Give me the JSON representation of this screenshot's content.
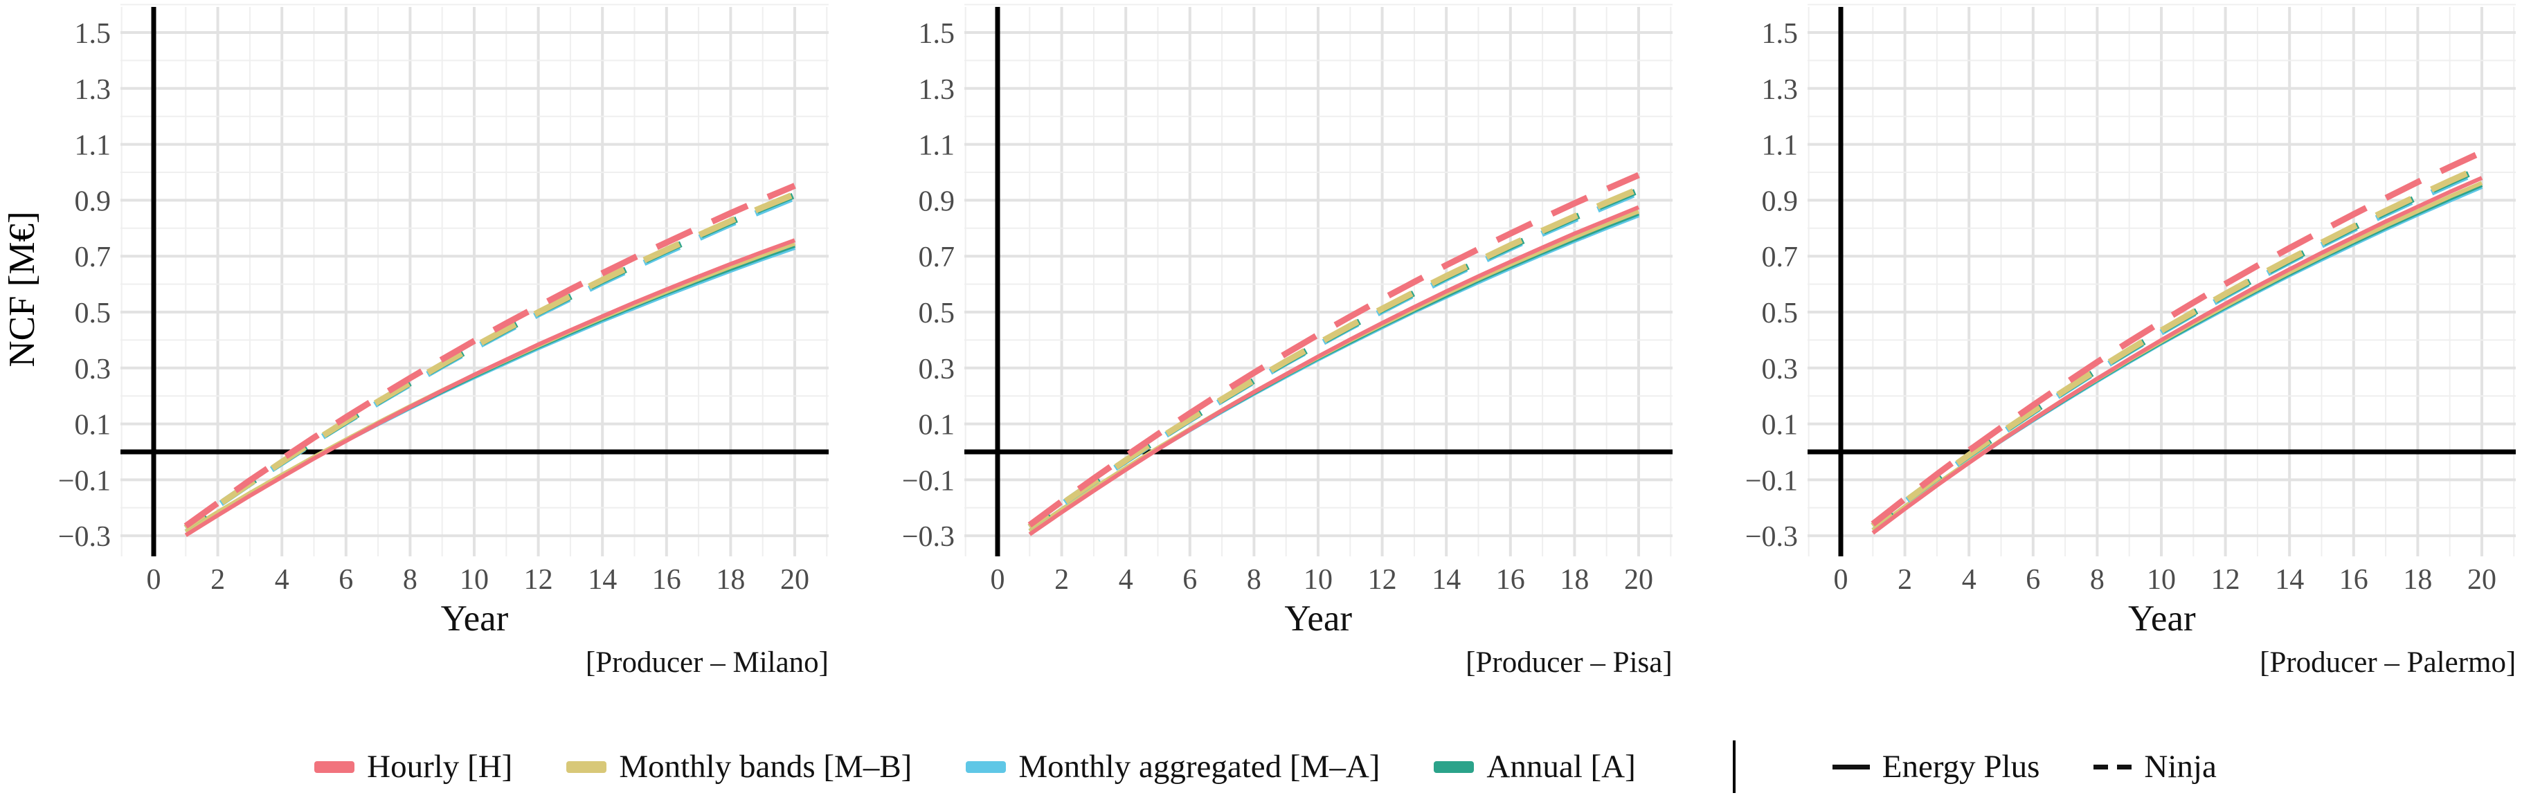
{
  "figure": {
    "ylabel": "NCF [M€]"
  },
  "styles": {
    "accent_red": "#F1737D",
    "accent_yellow": "#D8C878",
    "accent_blue": "#5FC7E6",
    "accent_teal": "#2BA38A",
    "axis_color": "#000000",
    "grid_major": "#e2e2e2",
    "grid_minor": "#efefef",
    "tick_color": "#4c4c4c"
  },
  "legend": {
    "models": [
      {
        "label": "Hourly [H]",
        "color": "#F1737D"
      },
      {
        "label": "Monthly bands [M–B]",
        "color": "#D8C878"
      },
      {
        "label": "Monthly aggregated [M–A]",
        "color": "#5FC7E6"
      },
      {
        "label": "Annual [A]",
        "color": "#2BA38A"
      }
    ],
    "sources": [
      {
        "label": "Energy Plus",
        "style": "solid"
      },
      {
        "label": "Ninja",
        "style": "dashed"
      }
    ]
  },
  "chart_data": [
    {
      "type": "line",
      "caption": "[Producer – Milano]",
      "xlabel": "Year",
      "ylabel": "NCF [M€]",
      "xlim": [
        -1,
        21
      ],
      "ylim": [
        -0.37,
        1.55
      ],
      "grid": true,
      "x": [
        1,
        2,
        3,
        4,
        5,
        6,
        7,
        8,
        9,
        10,
        11,
        12,
        13,
        14,
        15,
        16,
        17,
        18,
        19,
        20
      ],
      "x_ticks": [
        0,
        2,
        4,
        6,
        8,
        10,
        12,
        14,
        16,
        18,
        20
      ],
      "y_ticks": [
        {
          "v": 1.5,
          "label": "1.5"
        },
        {
          "v": 1.3,
          "label": "1.3"
        },
        {
          "v": 1.1,
          "label": "1.1"
        },
        {
          "v": 0.9,
          "label": "0.9"
        },
        {
          "v": 0.7,
          "label": "0.7"
        },
        {
          "v": 0.5,
          "label": "0.5"
        },
        {
          "v": 0.3,
          "label": "0.3"
        },
        {
          "v": 0.1,
          "label": "0.1"
        },
        {
          "v": -0.1,
          "label": "−0.1"
        },
        {
          "v": -0.3,
          "label": "−0.3"
        }
      ],
      "series": [
        {
          "model": "Monthly aggregated [M–A]",
          "source": "Energy Plus",
          "color": "#5FC7E6",
          "dashed": false,
          "values": [
            -0.285,
            -0.216,
            -0.149,
            -0.085,
            -0.022,
            0.04,
            0.099,
            0.157,
            0.213,
            0.267,
            0.319,
            0.371,
            0.42,
            0.469,
            0.515,
            0.561,
            0.605,
            0.648,
            0.69,
            0.73
          ]
        },
        {
          "model": "Annual [A]",
          "source": "Energy Plus",
          "color": "#2BA38A",
          "dashed": false,
          "values": [
            -0.285,
            -0.216,
            -0.148,
            -0.083,
            -0.02,
            0.042,
            0.102,
            0.16,
            0.216,
            0.271,
            0.324,
            0.376,
            0.426,
            0.475,
            0.522,
            0.568,
            0.612,
            0.655,
            0.697,
            0.738
          ]
        },
        {
          "model": "Monthly bands [M–B]",
          "source": "Energy Plus",
          "color": "#D8C878",
          "dashed": false,
          "values": [
            -0.285,
            -0.215,
            -0.147,
            -0.082,
            -0.018,
            0.044,
            0.105,
            0.163,
            0.22,
            0.275,
            0.328,
            0.38,
            0.431,
            0.48,
            0.527,
            0.573,
            0.618,
            0.662,
            0.704,
            0.745
          ]
        },
        {
          "model": "Hourly [H]",
          "source": "Energy Plus",
          "color": "#F1737D",
          "dashed": false,
          "values": [
            -0.298,
            -0.227,
            -0.157,
            -0.09,
            -0.024,
            0.039,
            0.101,
            0.161,
            0.219,
            0.276,
            0.33,
            0.384,
            0.435,
            0.485,
            0.534,
            0.581,
            0.627,
            0.672,
            0.715,
            0.757
          ]
        },
        {
          "model": "Monthly aggregated [M–A]",
          "source": "Ninja",
          "color": "#5FC7E6",
          "dashed": true,
          "values": [
            -0.272,
            -0.192,
            -0.114,
            -0.039,
            0.035,
            0.106,
            0.175,
            0.242,
            0.307,
            0.371,
            0.432,
            0.492,
            0.549,
            0.606,
            0.66,
            0.713,
            0.764,
            0.815,
            0.863,
            0.91
          ]
        },
        {
          "model": "Annual [A]",
          "source": "Ninja",
          "color": "#2BA38A",
          "dashed": true,
          "values": [
            -0.272,
            -0.191,
            -0.113,
            -0.037,
            0.037,
            0.108,
            0.178,
            0.246,
            0.311,
            0.375,
            0.437,
            0.497,
            0.555,
            0.612,
            0.666,
            0.72,
            0.771,
            0.822,
            0.871,
            0.918
          ]
        },
        {
          "model": "Monthly bands [M–B]",
          "source": "Ninja",
          "color": "#D8C878",
          "dashed": true,
          "values": [
            -0.272,
            -0.191,
            -0.113,
            -0.036,
            0.038,
            0.11,
            0.18,
            0.247,
            0.313,
            0.377,
            0.439,
            0.499,
            0.558,
            0.615,
            0.67,
            0.723,
            0.775,
            0.826,
            0.875,
            0.922
          ]
        },
        {
          "model": "Hourly [H]",
          "source": "Ninja",
          "color": "#F1737D",
          "dashed": true,
          "values": [
            -0.265,
            -0.183,
            -0.102,
            -0.025,
            0.051,
            0.124,
            0.195,
            0.264,
            0.331,
            0.397,
            0.46,
            0.521,
            0.581,
            0.639,
            0.695,
            0.749,
            0.802,
            0.854,
            0.904,
            0.952
          ]
        }
      ]
    },
    {
      "type": "line",
      "caption": "[Producer – Pisa]",
      "xlabel": "Year",
      "ylabel": "NCF [M€]",
      "xlim": [
        -1,
        21
      ],
      "ylim": [
        -0.37,
        1.55
      ],
      "grid": true,
      "x": [
        1,
        2,
        3,
        4,
        5,
        6,
        7,
        8,
        9,
        10,
        11,
        12,
        13,
        14,
        15,
        16,
        17,
        18,
        19,
        20
      ],
      "x_ticks": [
        0,
        2,
        4,
        6,
        8,
        10,
        12,
        14,
        16,
        18,
        20
      ],
      "y_ticks": [
        {
          "v": 1.5,
          "label": "1.5"
        },
        {
          "v": 1.3,
          "label": "1.3"
        },
        {
          "v": 1.1,
          "label": "1.1"
        },
        {
          "v": 0.9,
          "label": "0.9"
        },
        {
          "v": 0.7,
          "label": "0.7"
        },
        {
          "v": 0.5,
          "label": "0.5"
        },
        {
          "v": 0.3,
          "label": "0.3"
        },
        {
          "v": 0.1,
          "label": "0.1"
        },
        {
          "v": -0.1,
          "label": "−0.1"
        },
        {
          "v": -0.3,
          "label": "−0.3"
        }
      ],
      "series": [
        {
          "model": "Monthly aggregated [M–A]",
          "source": "Energy Plus",
          "color": "#5FC7E6",
          "dashed": false,
          "values": [
            -0.283,
            -0.206,
            -0.132,
            -0.06,
            0.01,
            0.078,
            0.144,
            0.208,
            0.27,
            0.331,
            0.389,
            0.446,
            0.502,
            0.555,
            0.607,
            0.658,
            0.707,
            0.755,
            0.801,
            0.846
          ]
        },
        {
          "model": "Annual [A]",
          "source": "Energy Plus",
          "color": "#2BA38A",
          "dashed": false,
          "values": [
            -0.283,
            -0.206,
            -0.131,
            -0.059,
            0.012,
            0.08,
            0.147,
            0.211,
            0.274,
            0.335,
            0.393,
            0.451,
            0.506,
            0.56,
            0.613,
            0.664,
            0.713,
            0.761,
            0.808,
            0.853
          ]
        },
        {
          "model": "Monthly bands [M–B]",
          "source": "Energy Plus",
          "color": "#D8C878",
          "dashed": false,
          "values": [
            -0.283,
            -0.206,
            -0.13,
            -0.057,
            0.014,
            0.082,
            0.149,
            0.214,
            0.277,
            0.338,
            0.398,
            0.455,
            0.511,
            0.566,
            0.619,
            0.67,
            0.719,
            0.768,
            0.815,
            0.86
          ]
        },
        {
          "model": "Hourly [H]",
          "source": "Energy Plus",
          "color": "#F1737D",
          "dashed": false,
          "values": [
            -0.295,
            -0.216,
            -0.139,
            -0.064,
            0.009,
            0.079,
            0.148,
            0.214,
            0.278,
            0.341,
            0.402,
            0.461,
            0.518,
            0.574,
            0.628,
            0.68,
            0.731,
            0.781,
            0.828,
            0.875
          ]
        },
        {
          "model": "Monthly aggregated [M–A]",
          "source": "Ninja",
          "color": "#5FC7E6",
          "dashed": true,
          "values": [
            -0.269,
            -0.188,
            -0.109,
            -0.033,
            0.042,
            0.114,
            0.184,
            0.252,
            0.318,
            0.382,
            0.444,
            0.504,
            0.563,
            0.62,
            0.675,
            0.729,
            0.781,
            0.831,
            0.88,
            0.928
          ]
        },
        {
          "model": "Annual [A]",
          "source": "Ninja",
          "color": "#2BA38A",
          "dashed": true,
          "values": [
            -0.269,
            -0.187,
            -0.108,
            -0.031,
            0.043,
            0.116,
            0.186,
            0.255,
            0.321,
            0.385,
            0.448,
            0.509,
            0.568,
            0.625,
            0.681,
            0.734,
            0.787,
            0.838,
            0.887,
            0.935
          ]
        },
        {
          "model": "Monthly bands [M–B]",
          "source": "Ninja",
          "color": "#D8C878",
          "dashed": true,
          "values": [
            -0.269,
            -0.187,
            -0.108,
            -0.03,
            0.045,
            0.117,
            0.188,
            0.257,
            0.324,
            0.388,
            0.451,
            0.512,
            0.571,
            0.629,
            0.684,
            0.739,
            0.791,
            0.842,
            0.892,
            0.94
          ]
        },
        {
          "model": "Hourly [H]",
          "source": "Ninja",
          "color": "#F1737D",
          "dashed": true,
          "values": [
            -0.262,
            -0.177,
            -0.095,
            -0.015,
            0.063,
            0.138,
            0.212,
            0.283,
            0.352,
            0.419,
            0.484,
            0.547,
            0.608,
            0.668,
            0.725,
            0.781,
            0.836,
            0.889,
            0.94,
            0.99
          ]
        }
      ]
    },
    {
      "type": "line",
      "caption": "[Producer – Palermo]",
      "xlabel": "Year",
      "ylabel": "NCF [M€]",
      "xlim": [
        -1,
        21
      ],
      "ylim": [
        -0.37,
        1.55
      ],
      "grid": true,
      "x": [
        1,
        2,
        3,
        4,
        5,
        6,
        7,
        8,
        9,
        10,
        11,
        12,
        13,
        14,
        15,
        16,
        17,
        18,
        19,
        20
      ],
      "x_ticks": [
        0,
        2,
        4,
        6,
        8,
        10,
        12,
        14,
        16,
        18,
        20
      ],
      "y_ticks": [
        {
          "v": 1.5,
          "label": "1.5"
        },
        {
          "v": 1.3,
          "label": "1.3"
        },
        {
          "v": 1.1,
          "label": "1.1"
        },
        {
          "v": 0.9,
          "label": "0.9"
        },
        {
          "v": 0.7,
          "label": "0.7"
        },
        {
          "v": 0.5,
          "label": "0.5"
        },
        {
          "v": 0.3,
          "label": "0.3"
        },
        {
          "v": 0.1,
          "label": "0.1"
        },
        {
          "v": -0.1,
          "label": "−0.1"
        },
        {
          "v": -0.3,
          "label": "−0.3"
        }
      ],
      "series": [
        {
          "model": "Monthly aggregated [M–A]",
          "source": "Energy Plus",
          "color": "#5FC7E6",
          "dashed": false,
          "values": [
            -0.28,
            -0.197,
            -0.116,
            -0.037,
            0.039,
            0.113,
            0.184,
            0.254,
            0.322,
            0.388,
            0.451,
            0.513,
            0.573,
            0.632,
            0.688,
            0.743,
            0.797,
            0.849,
            0.899,
            0.948
          ]
        },
        {
          "model": "Annual [A]",
          "source": "Energy Plus",
          "color": "#2BA38A",
          "dashed": false,
          "values": [
            -0.28,
            -0.196,
            -0.115,
            -0.036,
            0.04,
            0.115,
            0.187,
            0.257,
            0.325,
            0.391,
            0.455,
            0.518,
            0.578,
            0.637,
            0.694,
            0.749,
            0.803,
            0.855,
            0.906,
            0.955
          ]
        },
        {
          "model": "Monthly bands [M–B]",
          "source": "Energy Plus",
          "color": "#D8C878",
          "dashed": false,
          "values": [
            -0.28,
            -0.196,
            -0.114,
            -0.035,
            0.042,
            0.117,
            0.19,
            0.26,
            0.329,
            0.395,
            0.46,
            0.522,
            0.583,
            0.642,
            0.699,
            0.755,
            0.809,
            0.861,
            0.913,
            0.962
          ]
        },
        {
          "model": "Hourly [H]",
          "source": "Energy Plus",
          "color": "#F1737D",
          "dashed": false,
          "values": [
            -0.29,
            -0.204,
            -0.12,
            -0.039,
            0.04,
            0.116,
            0.19,
            0.262,
            0.332,
            0.4,
            0.466,
            0.53,
            0.593,
            0.653,
            0.712,
            0.768,
            0.824,
            0.877,
            0.93,
            0.98
          ]
        },
        {
          "model": "Monthly aggregated [M–A]",
          "source": "Ninja",
          "color": "#5FC7E6",
          "dashed": true,
          "values": [
            -0.265,
            -0.179,
            -0.095,
            -0.014,
            0.065,
            0.142,
            0.216,
            0.289,
            0.359,
            0.427,
            0.493,
            0.557,
            0.62,
            0.68,
            0.739,
            0.796,
            0.851,
            0.905,
            0.957,
            1.008
          ]
        },
        {
          "model": "Annual [A]",
          "source": "Ninja",
          "color": "#2BA38A",
          "dashed": true,
          "values": [
            -0.265,
            -0.178,
            -0.094,
            -0.012,
            0.067,
            0.144,
            0.219,
            0.292,
            0.362,
            0.431,
            0.497,
            0.562,
            0.624,
            0.685,
            0.744,
            0.802,
            0.857,
            0.912,
            0.964,
            1.015
          ]
        },
        {
          "model": "Monthly bands [M–B]",
          "source": "Ninja",
          "color": "#D8C878",
          "dashed": true,
          "values": [
            -0.265,
            -0.178,
            -0.093,
            -0.011,
            0.069,
            0.146,
            0.221,
            0.294,
            0.365,
            0.434,
            0.5,
            0.565,
            0.628,
            0.689,
            0.748,
            0.806,
            0.862,
            0.916,
            0.969,
            1.02
          ]
        },
        {
          "model": "Hourly [H]",
          "source": "Ninja",
          "color": "#F1737D",
          "dashed": true,
          "values": [
            -0.258,
            -0.168,
            -0.08,
            0.005,
            0.087,
            0.167,
            0.245,
            0.321,
            0.394,
            0.465,
            0.534,
            0.601,
            0.666,
            0.729,
            0.79,
            0.85,
            0.908,
            0.965,
            1.019,
            1.072
          ]
        }
      ]
    }
  ]
}
